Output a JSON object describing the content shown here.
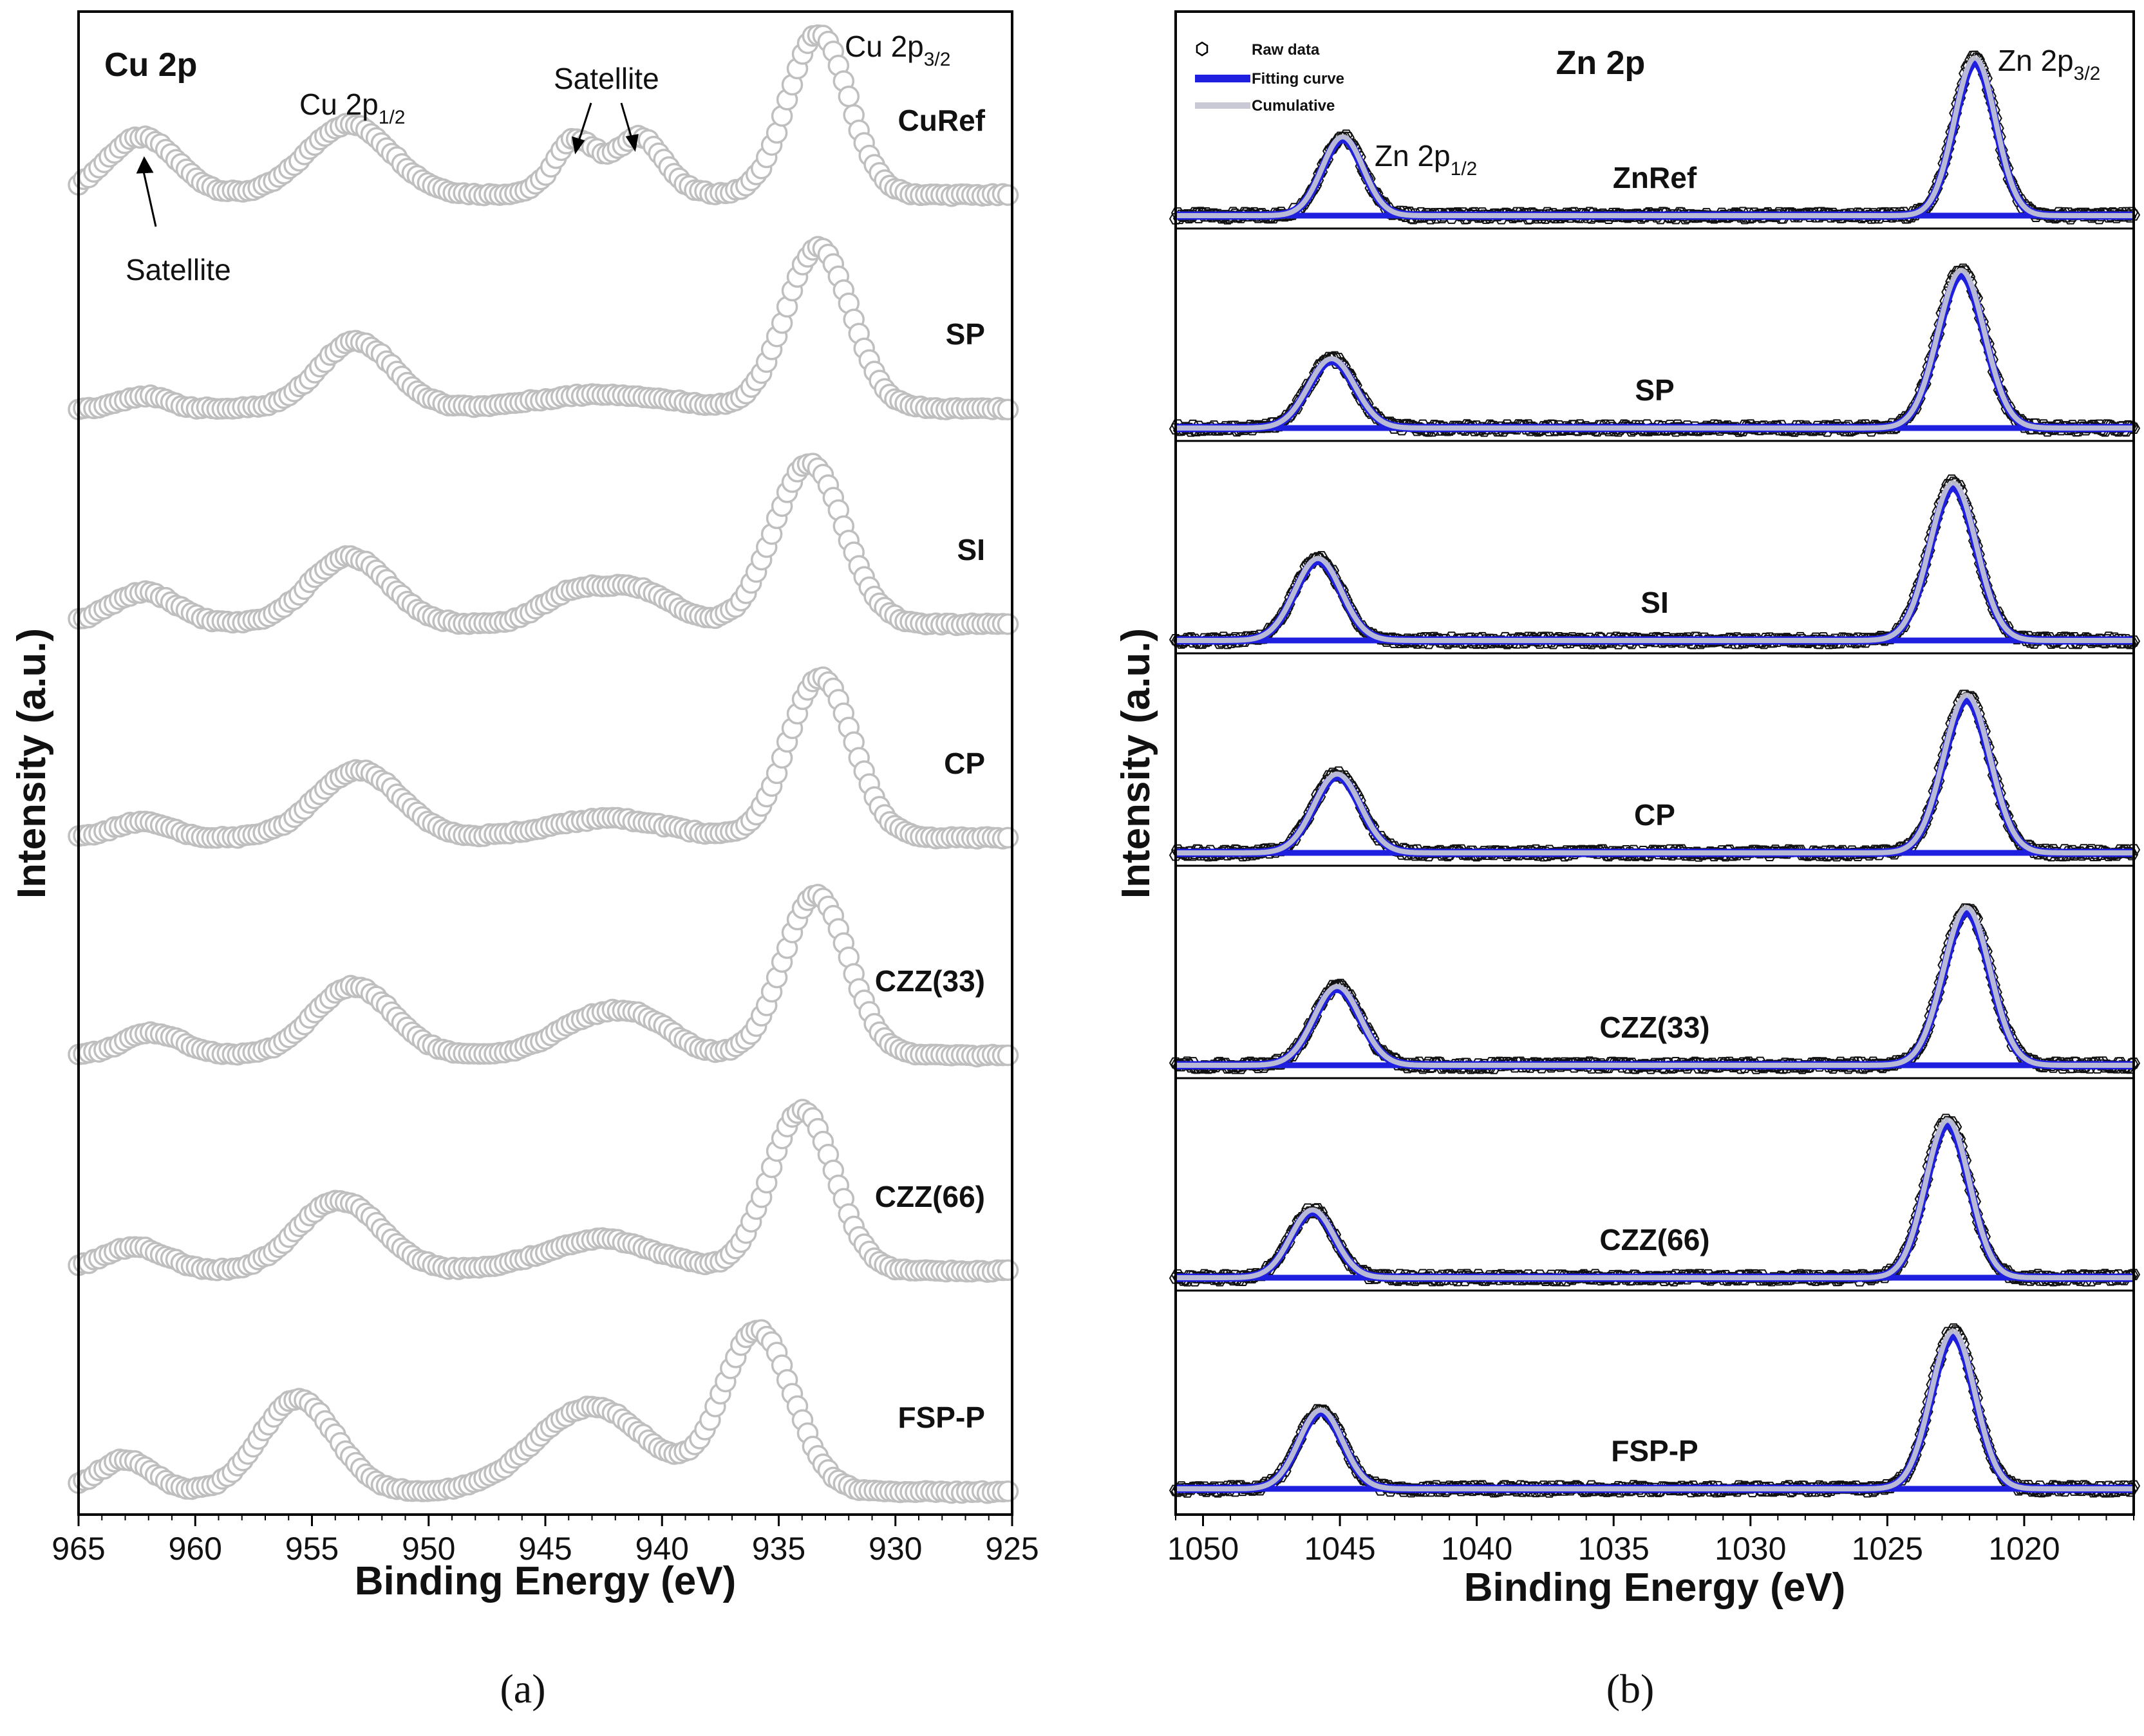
{
  "chart_data": [
    {
      "type": "line",
      "title": "Cu 2p",
      "panel_label": "(a)",
      "xlabel": "Binding Energy (eV)",
      "ylabel": "Intensity (a.u.)",
      "xlim": [
        965,
        925
      ],
      "x_ticks": [
        965,
        960,
        955,
        950,
        945,
        940,
        935,
        930,
        925
      ],
      "y_ticks_shown": false,
      "marker": "open-circle",
      "marker_color": "#bfbfbf",
      "annotations": [
        {
          "text": "Cu 2p",
          "sub": "1/2",
          "x": 953.4
        },
        {
          "text": "Cu 2p",
          "sub": "3/2",
          "x": 933.3
        },
        {
          "text": "Satellite",
          "x": 942.5
        },
        {
          "text": "Satellite",
          "x": 962.3
        }
      ],
      "series": [
        {
          "name": "CuRef",
          "peaks": [
            [
              933.3,
              1.0,
              1.3
            ],
            [
              953.4,
              0.44,
              1.8
            ],
            [
              943.8,
              0.24,
              0.8
            ],
            [
              940.8,
              0.24,
              0.9
            ],
            [
              942.2,
              0.16,
              1.8
            ],
            [
              962.3,
              0.36,
              1.5
            ]
          ]
        },
        {
          "name": "SP",
          "peaks": [
            [
              933.3,
              1.0,
              1.4
            ],
            [
              953.1,
              0.42,
              1.6
            ],
            [
              962.2,
              0.08,
              1.0
            ],
            [
              942.5,
              0.09,
              2.8
            ]
          ]
        },
        {
          "name": "SI",
          "peaks": [
            [
              933.7,
              1.0,
              1.5
            ],
            [
              953.4,
              0.42,
              1.7
            ],
            [
              962.2,
              0.2,
              1.4
            ],
            [
              943.7,
              0.2,
              1.4
            ],
            [
              940.9,
              0.2,
              1.4
            ]
          ]
        },
        {
          "name": "CP",
          "peaks": [
            [
              933.2,
              1.0,
              1.4
            ],
            [
              953.0,
              0.42,
              1.8
            ],
            [
              962.3,
              0.1,
              1.2
            ],
            [
              942.3,
              0.12,
              2.5
            ]
          ]
        },
        {
          "name": "CZZ(33)",
          "peaks": [
            [
              933.4,
              1.0,
              1.4
            ],
            [
              953.2,
              0.43,
              1.7
            ],
            [
              961.8,
              0.14,
              1.3
            ],
            [
              943.2,
              0.2,
              1.6
            ],
            [
              940.8,
              0.19,
              1.4
            ]
          ]
        },
        {
          "name": "CZZ(66)",
          "peaks": [
            [
              934.0,
              1.0,
              1.4
            ],
            [
              953.8,
              0.44,
              1.8
            ],
            [
              962.6,
              0.15,
              1.4
            ],
            [
              942.6,
              0.2,
              2.4
            ]
          ]
        },
        {
          "name": "FSP-P",
          "peaks": [
            [
              935.9,
              1.0,
              1.5
            ],
            [
              955.6,
              0.58,
              1.6
            ],
            [
              963.0,
              0.2,
              1.2
            ],
            [
              943.0,
              0.53,
              2.4
            ]
          ]
        }
      ]
    },
    {
      "type": "line",
      "title": "Zn 2p",
      "panel_label": "(b)",
      "xlabel": "Binding Energy (eV)",
      "ylabel": "Intensity (a.u.)",
      "xlim": [
        1051,
        1016
      ],
      "x_ticks": [
        1050,
        1045,
        1040,
        1035,
        1030,
        1025,
        1020
      ],
      "y_ticks_shown": false,
      "legend": {
        "position": "top-left",
        "entries": [
          "Raw data",
          "Fitting curve",
          "Cumulative"
        ]
      },
      "annotations": [
        {
          "text": "Zn 2p",
          "sub": "1/2",
          "x": 1044.9
        },
        {
          "text": "Zn 2p",
          "sub": "3/2",
          "x": 1021.8
        }
      ],
      "series": [
        {
          "name": "ZnRef",
          "peaks": [
            [
              1044.9,
              0.5,
              0.75
            ],
            [
              1021.8,
              1.0,
              0.75
            ]
          ]
        },
        {
          "name": "SP",
          "peaks": [
            [
              1045.3,
              0.44,
              0.85
            ],
            [
              1022.3,
              1.0,
              0.85
            ]
          ]
        },
        {
          "name": "SI",
          "peaks": [
            [
              1045.8,
              0.52,
              0.85
            ],
            [
              1022.6,
              1.0,
              0.85
            ]
          ]
        },
        {
          "name": "CP",
          "peaks": [
            [
              1045.1,
              0.5,
              0.85
            ],
            [
              1022.1,
              1.0,
              0.85
            ]
          ]
        },
        {
          "name": "CZZ(33)",
          "peaks": [
            [
              1045.1,
              0.5,
              0.85
            ],
            [
              1022.1,
              1.0,
              0.85
            ]
          ]
        },
        {
          "name": "CZZ(66)",
          "peaks": [
            [
              1046.0,
              0.43,
              0.8
            ],
            [
              1022.8,
              1.0,
              0.8
            ]
          ]
        },
        {
          "name": "FSP-P",
          "peaks": [
            [
              1045.7,
              0.5,
              0.8
            ],
            [
              1022.6,
              1.0,
              0.8
            ]
          ]
        }
      ]
    }
  ]
}
